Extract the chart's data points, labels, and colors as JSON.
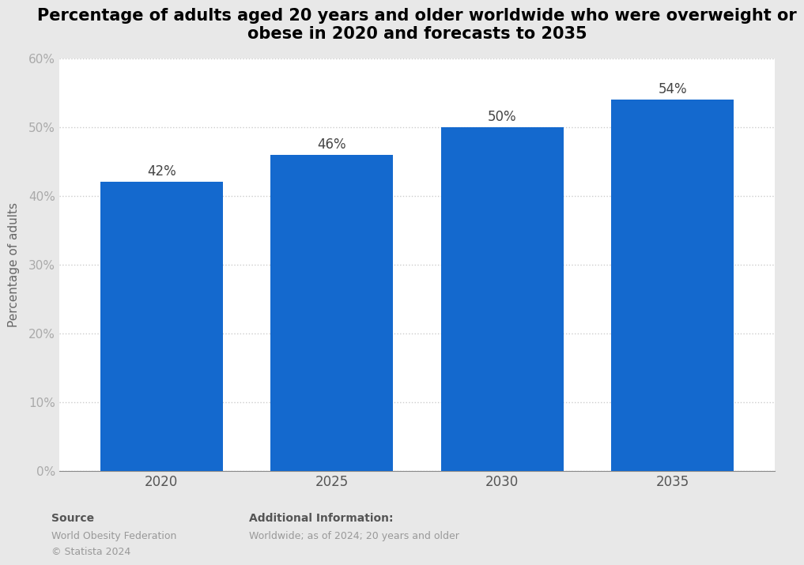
{
  "title": "Percentage of adults aged 20 years and older worldwide who were overweight or\nobese in 2020 and forecasts to 2035",
  "categories": [
    "2020",
    "2025",
    "2030",
    "2035"
  ],
  "values": [
    42,
    46,
    50,
    54
  ],
  "bar_color": "#1469CE",
  "ylabel": "Percentage of adults",
  "ylim": [
    0,
    60
  ],
  "yticks": [
    0,
    10,
    20,
    30,
    40,
    50,
    60
  ],
  "ytick_labels": [
    "0%",
    "10%",
    "20%",
    "30%",
    "40%",
    "50%",
    "60%"
  ],
  "value_labels": [
    "42%",
    "46%",
    "50%",
    "54%"
  ],
  "outer_background_color": "#e8e8e8",
  "plot_background_color": "#ffffff",
  "grid_color": "#cccccc",
  "title_fontsize": 15,
  "value_fontsize": 12,
  "ylabel_fontsize": 11,
  "tick_fontsize": 11,
  "footer_fontsize": 10,
  "footer_small_fontsize": 9,
  "ytick_color": "#aaaaaa",
  "xtick_color": "#555555",
  "footer_bold_color": "#555555",
  "footer_normal_color": "#999999",
  "bar_width": 0.72
}
